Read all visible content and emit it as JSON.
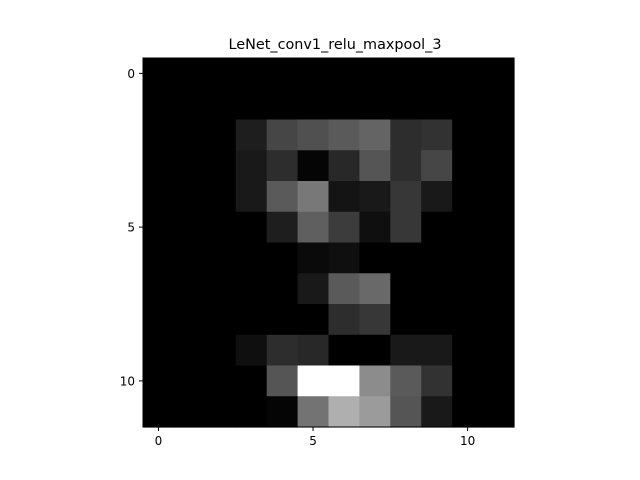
{
  "chart_data": {
    "type": "heatmap",
    "title": "LeNet_conv1_relu_maxpool_3",
    "xlabel": "",
    "ylabel": "",
    "colormap": "gray",
    "vmin": 0,
    "vmax": 255,
    "grid": false,
    "rows": 12,
    "cols": 12,
    "xlim": [
      -0.5,
      11.5
    ],
    "ylim": [
      11.5,
      -0.5
    ],
    "x_ticks": [
      0,
      5,
      10
    ],
    "y_ticks": [
      0,
      5,
      10
    ],
    "x_tick_labels": [
      "0",
      "5",
      "10"
    ],
    "y_tick_labels": [
      "0",
      "5",
      "10"
    ],
    "values": [
      [
        0,
        0,
        0,
        0,
        0,
        0,
        0,
        0,
        0,
        0,
        0,
        0
      ],
      [
        0,
        0,
        0,
        0,
        0,
        0,
        0,
        0,
        0,
        0,
        0,
        0
      ],
      [
        0,
        0,
        0,
        30,
        70,
        80,
        90,
        100,
        45,
        50,
        0,
        0
      ],
      [
        0,
        0,
        0,
        25,
        45,
        5,
        40,
        85,
        45,
        70,
        0,
        0
      ],
      [
        0,
        0,
        0,
        25,
        90,
        120,
        20,
        25,
        55,
        25,
        0,
        0
      ],
      [
        0,
        0,
        0,
        0,
        30,
        95,
        60,
        15,
        55,
        0,
        0,
        0
      ],
      [
        0,
        0,
        0,
        0,
        0,
        10,
        15,
        0,
        0,
        0,
        0,
        0
      ],
      [
        0,
        0,
        0,
        0,
        0,
        25,
        90,
        105,
        0,
        0,
        0,
        0
      ],
      [
        0,
        0,
        0,
        0,
        0,
        0,
        45,
        55,
        0,
        0,
        0,
        0
      ],
      [
        0,
        0,
        0,
        15,
        45,
        40,
        0,
        0,
        25,
        25,
        0,
        0
      ],
      [
        0,
        0,
        0,
        0,
        85,
        255,
        255,
        140,
        90,
        50,
        0,
        0
      ],
      [
        0,
        0,
        0,
        0,
        5,
        115,
        175,
        155,
        85,
        25,
        0,
        0
      ]
    ]
  }
}
